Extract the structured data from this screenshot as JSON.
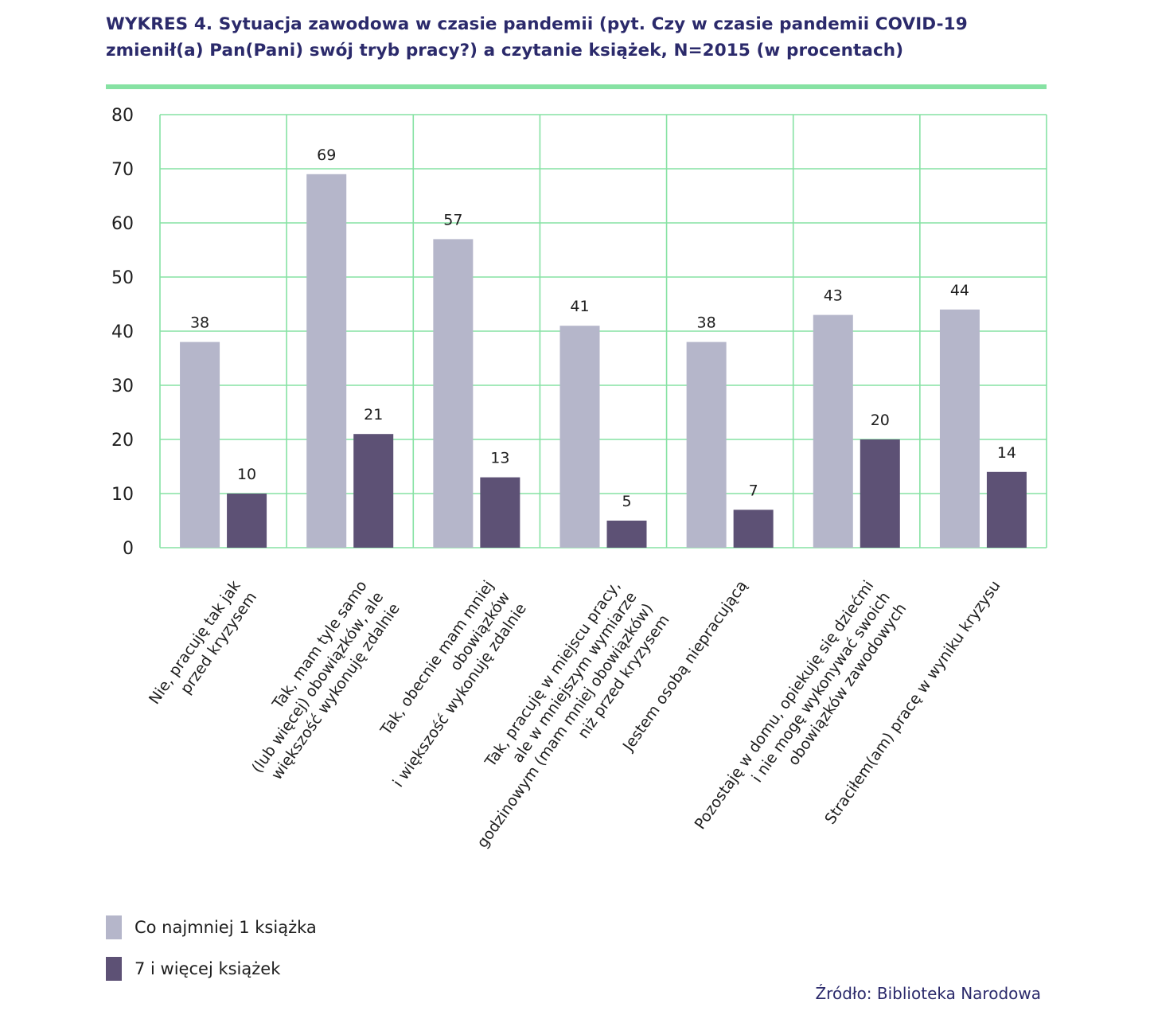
{
  "chart_data": {
    "type": "bar",
    "title_lines": [
      "WYKRES 4. Sytuacja zawodowa w czasie pandemii (pyt. Czy w czasie pandemii COVID-19",
      "zmienił(a) Pan(Pani) swój tryb pracy?) a czytanie książek, N=2015 (w procentach)"
    ],
    "xlabel": "",
    "ylabel": "",
    "ylim": [
      0,
      80
    ],
    "yticks": [
      "0",
      "10",
      "20",
      "30",
      "40",
      "50",
      "60",
      "70",
      "80"
    ],
    "grid": true,
    "categories": [
      [
        "Nie, pracuję tak jak",
        "przed kryzysem"
      ],
      [
        "Tak, mam tyle samo",
        "(lub więcej) obowiązków, ale",
        "większość wykonuję zdalnie"
      ],
      [
        "Tak, obecnie mam mniej",
        "obowiązków",
        "i większość wykonuję zdalnie"
      ],
      [
        "Tak, pracuję w miejscu pracy,",
        "ale w mniejszym wymiarze",
        "godzinowym (mam mniej obowiązków)",
        "niż przed kryzysem"
      ],
      [
        "Jestem osobą niepracującą"
      ],
      [
        "Pozostaję w domu, opiekuję się dziećmi",
        "i nie mogę wykonywać swoich",
        "obowiązków zawodowych"
      ],
      [
        "Straciłem(am) pracę w wyniku kryzysu"
      ]
    ],
    "series": [
      {
        "name": "Co najmniej 1 książka",
        "color": "#b5b6ca",
        "values": [
          38,
          69,
          57,
          41,
          38,
          43,
          44
        ]
      },
      {
        "name": "7 i więcej książek",
        "color": "#5d5175",
        "values": [
          10,
          21,
          13,
          5,
          7,
          20,
          14
        ]
      }
    ],
    "legend_position": "bottom-left",
    "grid_color": "#86e2a3",
    "source": "Źródło: Biblioteka Narodowa"
  }
}
